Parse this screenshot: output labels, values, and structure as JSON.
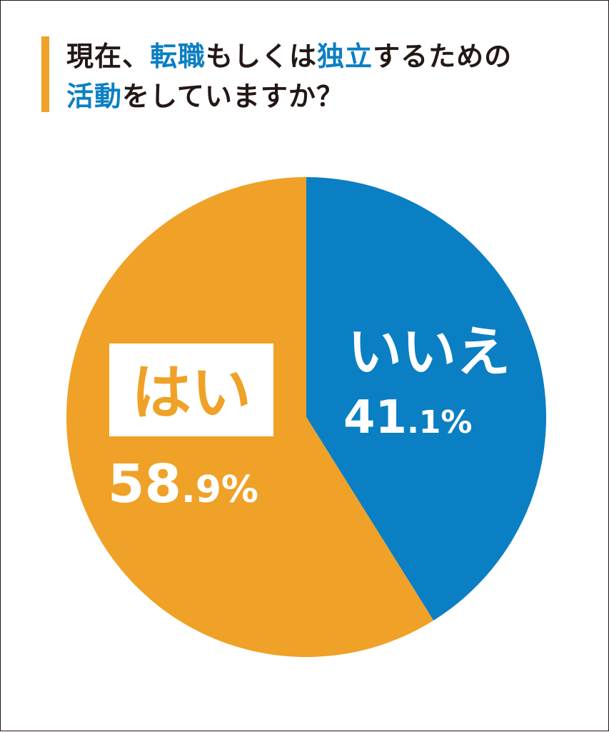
{
  "title": {
    "segments": [
      {
        "text": "現在、",
        "highlight": false
      },
      {
        "text": "転職",
        "highlight": true
      },
      {
        "text": "もしくは",
        "highlight": false
      },
      {
        "text": "独立",
        "highlight": true
      },
      {
        "text": "するための",
        "highlight": false
      },
      {
        "text": "活動",
        "highlight": true
      },
      {
        "text": "をしていますか？",
        "highlight": false
      }
    ],
    "accent_color": "#f0a127",
    "highlight_color": "#0b7fc3"
  },
  "chart_data": {
    "type": "pie",
    "title": "現在、転職もしくは独立するための活動をしていますか？",
    "slices": [
      {
        "label": "いいえ",
        "value": 41.1,
        "value_int": "41",
        "value_dec": ".1%",
        "color": "#0b7fc3"
      },
      {
        "label": "はい",
        "value": 58.9,
        "value_int": "58",
        "value_dec": ".9%",
        "color": "#f0a127"
      }
    ],
    "start_angle_deg": 0,
    "direction": "clockwise"
  }
}
